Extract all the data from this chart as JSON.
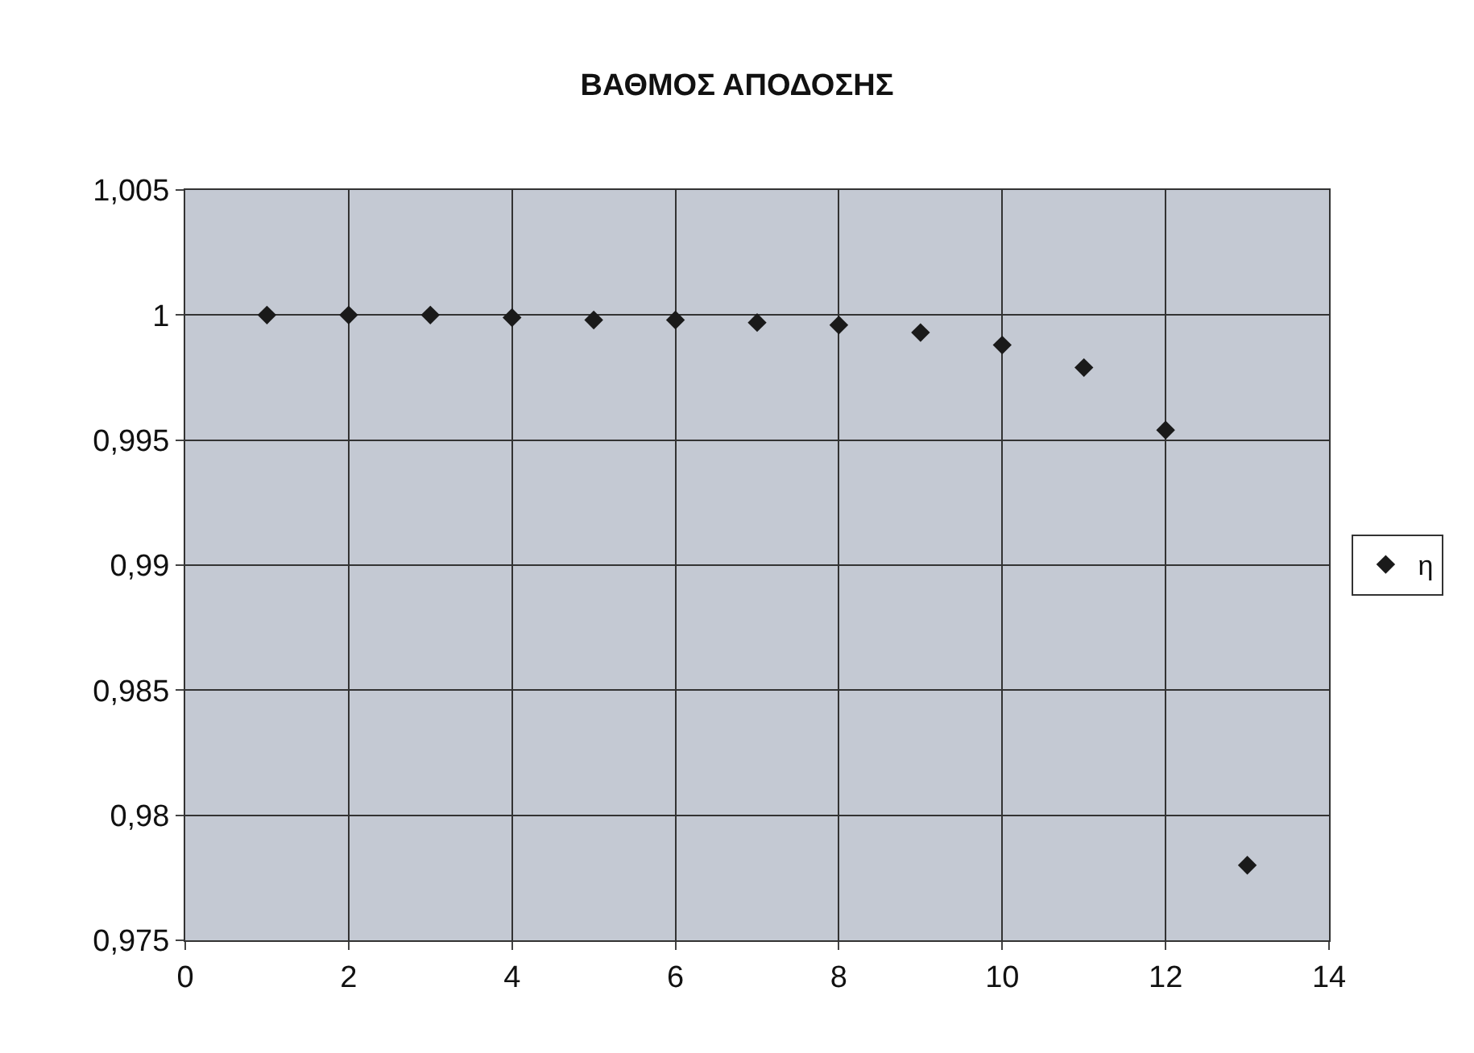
{
  "chart_data": {
    "type": "scatter",
    "title": "ΒΑΘΜΟΣ ΑΠΟΔΟΣΗΣ",
    "x": [
      1,
      2,
      3,
      4,
      5,
      6,
      7,
      8,
      9,
      10,
      11,
      12,
      13
    ],
    "series": [
      {
        "name": "η",
        "color": "#1a1a1a",
        "values": [
          1.0,
          1.0,
          1.0,
          0.9999,
          0.9998,
          0.9998,
          0.9997,
          0.9996,
          0.9993,
          0.9988,
          0.9979,
          0.9954,
          0.978
        ]
      }
    ],
    "xlim": [
      0,
      14
    ],
    "xticks": [
      0,
      2,
      4,
      6,
      8,
      10,
      12,
      14
    ],
    "ylim": [
      0.975,
      1.005
    ],
    "yticks": [
      {
        "value": 0.975,
        "label": "0,975"
      },
      {
        "value": 0.98,
        "label": "0,98"
      },
      {
        "value": 0.985,
        "label": "0,985"
      },
      {
        "value": 0.99,
        "label": "0,99"
      },
      {
        "value": 0.995,
        "label": "0,995"
      },
      {
        "value": 1,
        "label": "1"
      },
      {
        "value": 1.005,
        "label": "1,005"
      }
    ],
    "grid": true,
    "legend": "right",
    "marker": "diamond"
  }
}
